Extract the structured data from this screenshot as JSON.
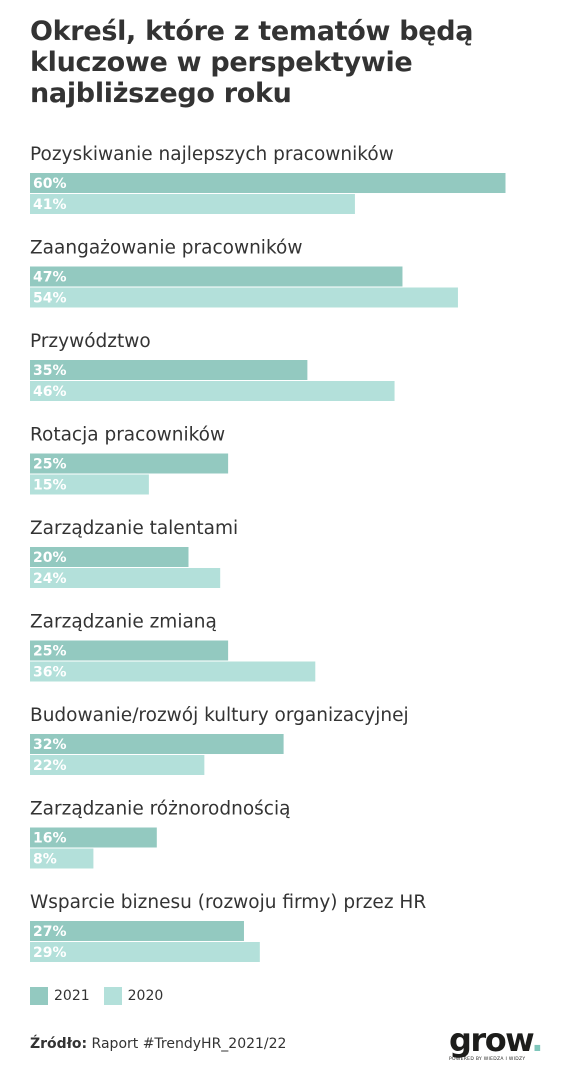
{
  "title_lines": [
    "Określ, które z tematów będą",
    "kluczowe w perspektywie",
    "najbliższego roku"
  ],
  "colors": {
    "2021": "#93c9c0",
    "2020": "#b3e0da"
  },
  "chart_data": {
    "type": "bar",
    "orientation": "horizontal",
    "categories": [
      "Pozyskiwanie najlepszych pracowników",
      "Zaangażowanie pracowników",
      "Przywództwo",
      "Rotacja pracowników",
      "Zarządzanie talentami",
      "Zarządzanie zmianą",
      "Budowanie/rozwój kultury organizacyjnej",
      "Zarządzanie różnorodnością",
      "Wsparcie biznesu (rozwoju firmy) przez HR"
    ],
    "series": [
      {
        "name": "2021",
        "values": [
          60,
          47,
          35,
          25,
          20,
          25,
          32,
          16,
          27
        ],
        "color": "#93c9c0"
      },
      {
        "name": "2020",
        "values": [
          41,
          54,
          46,
          15,
          24,
          36,
          22,
          8,
          29
        ],
        "color": "#b3e0da"
      }
    ],
    "unit": "%",
    "xlim": [
      0,
      100
    ],
    "grid": false,
    "legend_placement": "bottom-left"
  },
  "legend": {
    "items": [
      "2021",
      "2020"
    ]
  },
  "source": {
    "label": "Źródło:",
    "text": " Raport #TrendyHR_2021/22"
  },
  "logo": {
    "word": "grow",
    "dot": ".",
    "tagline": "POWERED BY WIEDZA I WIDZY"
  }
}
